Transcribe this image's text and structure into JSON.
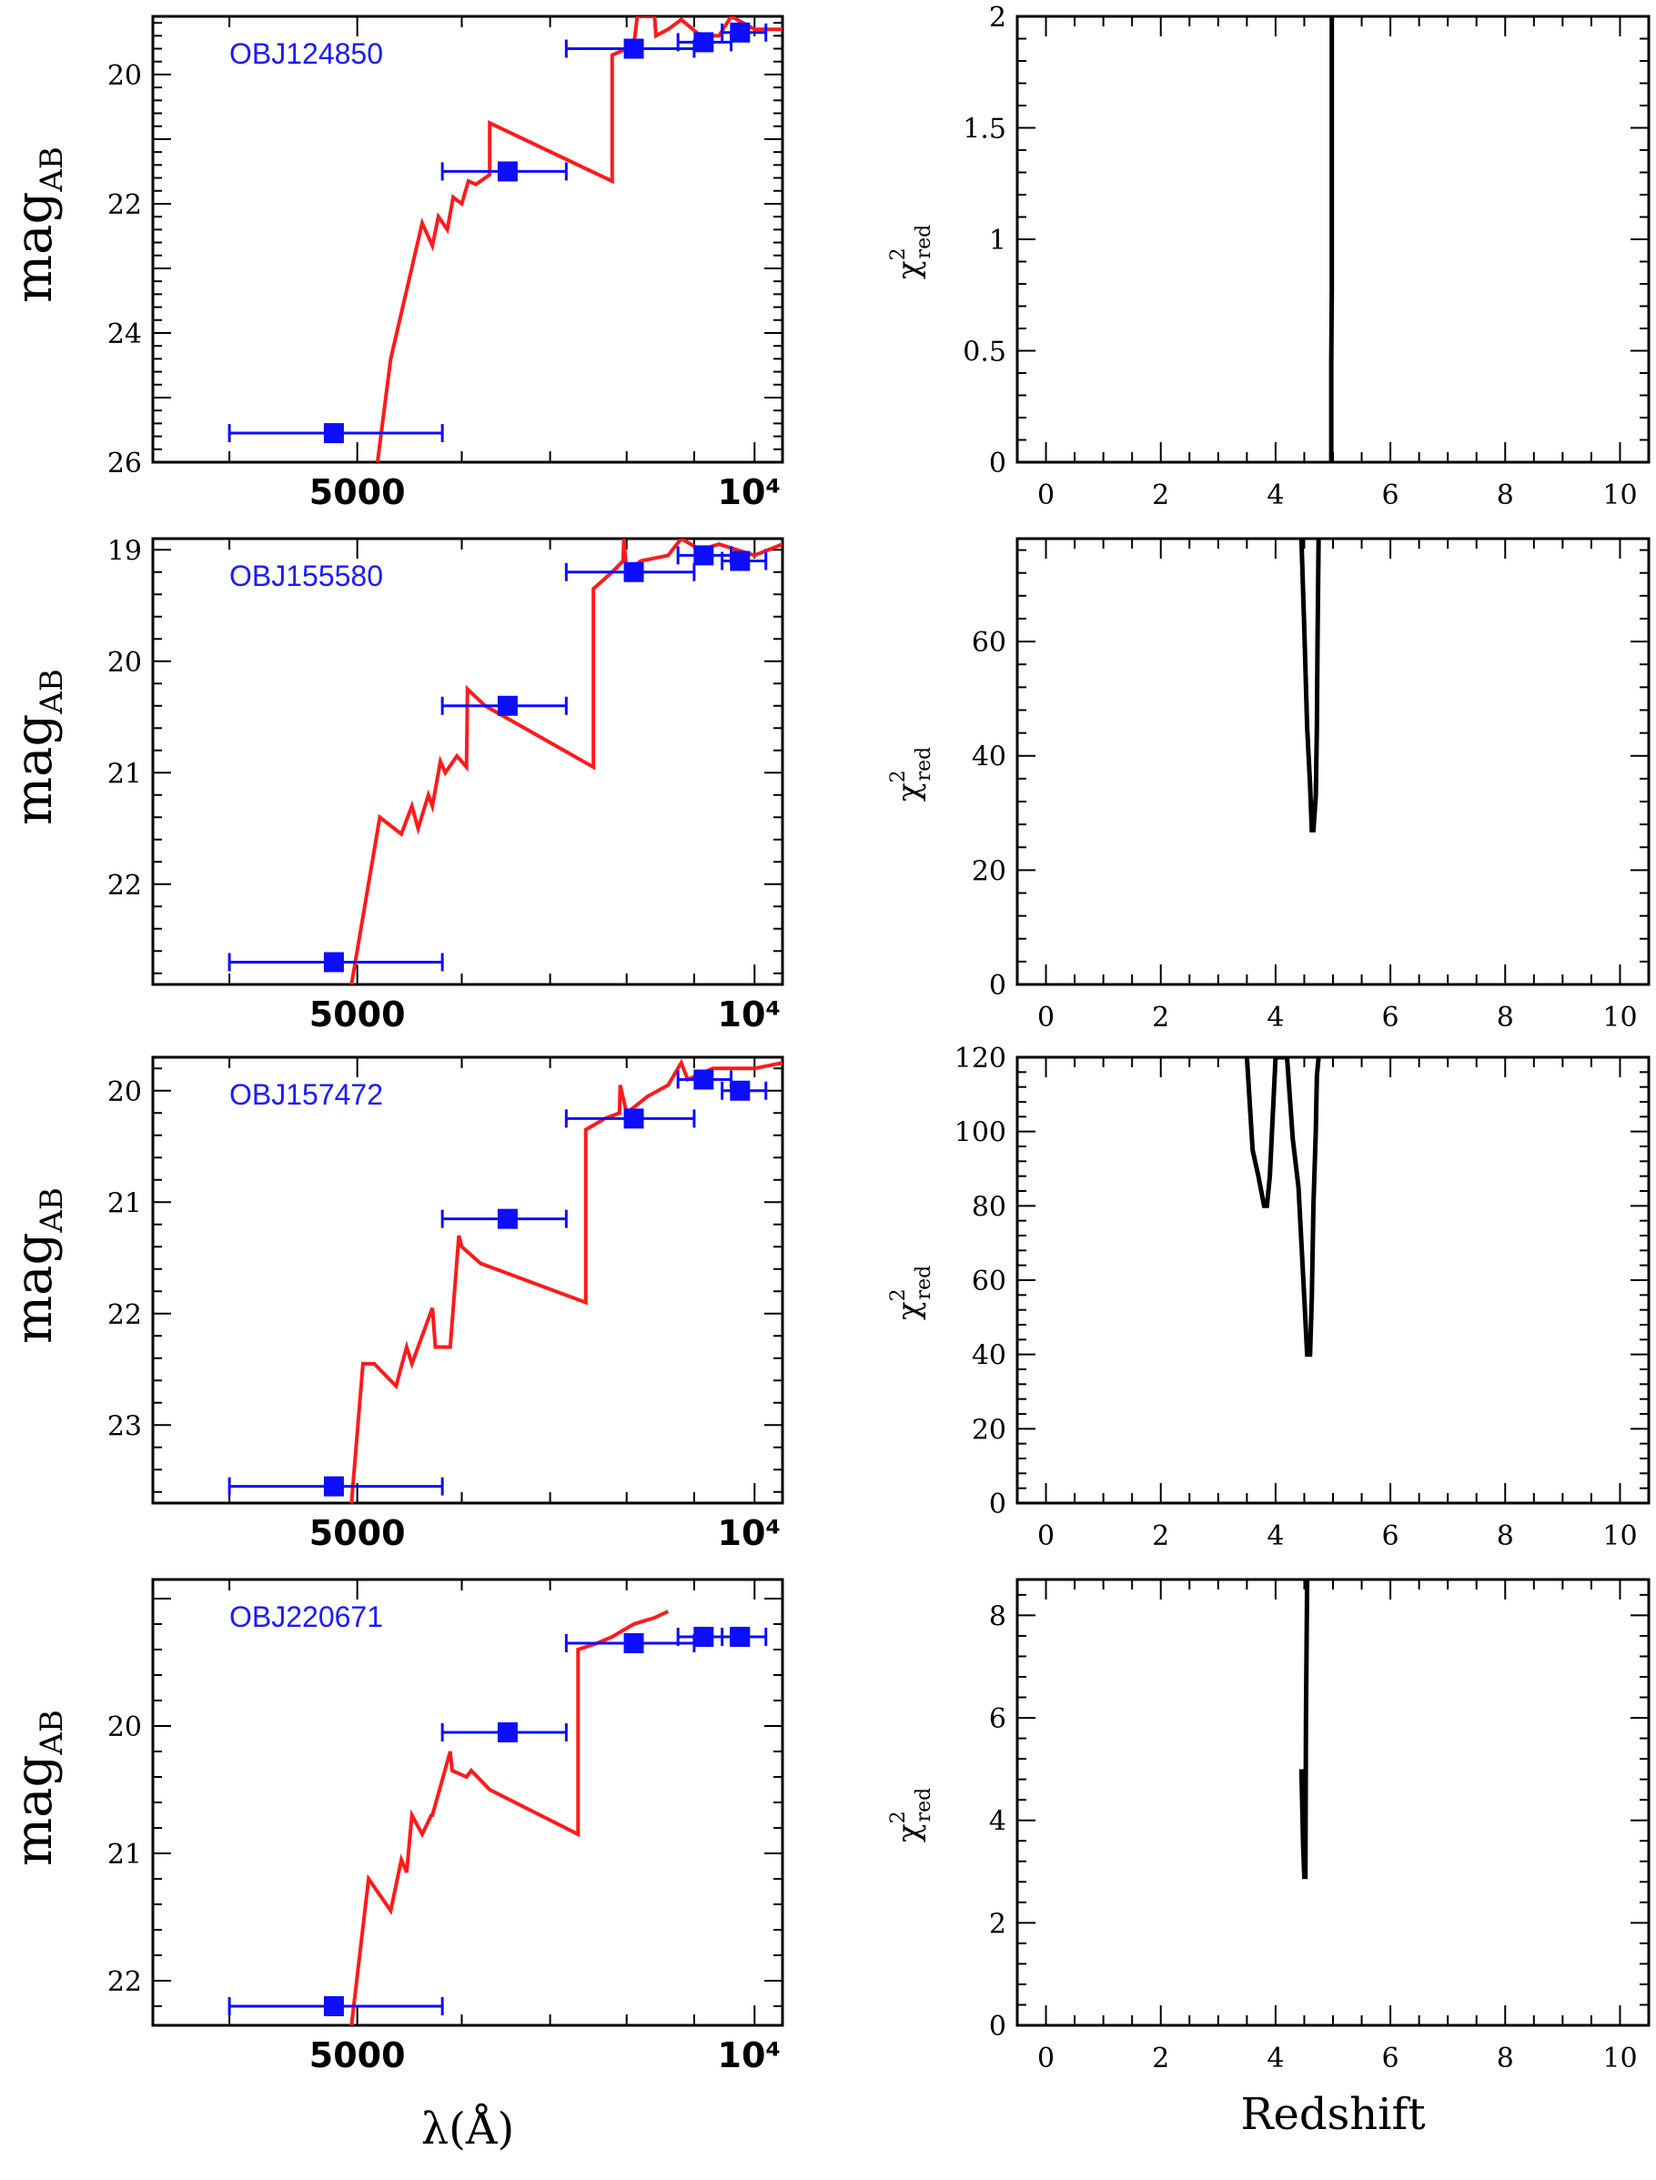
{
  "colors": {
    "model": "#ff1a1a",
    "points": "#0d0dff",
    "axes": "#000000",
    "label": "#1a1aff"
  },
  "labels": {
    "sed_ylabel_main": "mag",
    "sed_ylabel_sub": "AB",
    "sed_xlabel": "λ(Å)",
    "chi_ylabel_main": "χ",
    "chi_ylabel_sup": "2",
    "chi_ylabel_sub": "red",
    "chi_xlabel": "Redshift"
  },
  "chart_data": [
    {
      "type": "line",
      "panel": "sed",
      "object": "OBJ124850",
      "xscale": "log",
      "xlim": [
        3500,
        10500
      ],
      "ylim": [
        26,
        19.1
      ],
      "x_ticklabels": [
        "5000",
        "10⁴"
      ],
      "y_ticks": [
        20,
        22,
        24,
        26
      ],
      "points": [
        {
          "x": 4800,
          "y": 25.55,
          "xerr": [
            4000,
            5800
          ]
        },
        {
          "x": 6500,
          "y": 21.5,
          "xerr": [
            5800,
            7200
          ]
        },
        {
          "x": 8100,
          "y": 19.6,
          "xerr": [
            7200,
            9000
          ]
        },
        {
          "x": 9150,
          "y": 19.5,
          "xerr": [
            8750,
            9600
          ]
        },
        {
          "x": 9750,
          "y": 19.35,
          "xerr": [
            9450,
            10200
          ]
        }
      ],
      "model": {
        "x": [
          5180,
          5300,
          5600,
          5700,
          5760,
          5850,
          5910,
          6000,
          6070,
          6150,
          6300,
          6300,
          7800,
          7800,
          8100,
          8150,
          8400,
          8420,
          8600,
          8800,
          9100,
          9400,
          9600,
          10000,
          10500
        ],
        "y": [
          26,
          24.4,
          22.3,
          22.65,
          22.2,
          22.4,
          21.9,
          22.0,
          21.65,
          21.7,
          21.55,
          20.75,
          21.65,
          19.7,
          19.55,
          19.1,
          19.1,
          19.4,
          19.3,
          19.15,
          19.4,
          19.4,
          19.1,
          19.3,
          19.3
        ]
      }
    },
    {
      "type": "line",
      "panel": "chi2",
      "object": "OBJ124850",
      "xlabel": "",
      "xlim": [
        -0.5,
        10.5
      ],
      "ylim": [
        0,
        2
      ],
      "x_ticks": [
        0,
        2,
        4,
        6,
        8,
        10
      ],
      "y_ticks": [
        "0",
        "0.5",
        "1",
        "1.5",
        "2"
      ],
      "curve": {
        "x": [
          4.97,
          4.97,
          4.98,
          4.98
        ],
        "y": [
          0,
          0.45,
          0.78,
          2.0
        ]
      }
    },
    {
      "type": "line",
      "panel": "sed",
      "object": "OBJ155580",
      "xscale": "log",
      "xlim": [
        3500,
        10500
      ],
      "ylim": [
        22.9,
        18.9
      ],
      "x_ticklabels": [
        "5000",
        "10⁴"
      ],
      "y_ticks": [
        19,
        20,
        21,
        22
      ],
      "points": [
        {
          "x": 4800,
          "y": 22.7,
          "xerr": [
            4000,
            5800
          ]
        },
        {
          "x": 6500,
          "y": 20.4,
          "xerr": [
            5800,
            7200
          ]
        },
        {
          "x": 8100,
          "y": 19.2,
          "xerr": [
            7200,
            9000
          ]
        },
        {
          "x": 9150,
          "y": 19.05,
          "xerr": [
            8750,
            9600
          ]
        },
        {
          "x": 9750,
          "y": 19.1,
          "xerr": [
            9450,
            10200
          ]
        }
      ],
      "model": {
        "x": [
          4950,
          5200,
          5400,
          5500,
          5560,
          5660,
          5700,
          5780,
          5830,
          5950,
          6050,
          6060,
          6250,
          7550,
          7550,
          7800,
          7950,
          7960,
          8000,
          8200,
          8600,
          8800,
          9100,
          9400,
          10000,
          10500
        ],
        "y": [
          22.9,
          21.4,
          21.55,
          21.3,
          21.5,
          21.2,
          21.3,
          20.9,
          21.0,
          20.85,
          20.95,
          20.25,
          20.4,
          20.95,
          19.35,
          19.2,
          19.1,
          18.9,
          19.2,
          19.1,
          19.05,
          18.9,
          19.0,
          18.95,
          19.05,
          18.95
        ]
      }
    },
    {
      "type": "line",
      "panel": "chi2",
      "object": "OBJ155580",
      "xlabel": "",
      "xlim": [
        -0.5,
        10.5
      ],
      "ylim": [
        0,
        78
      ],
      "x_ticks": [
        0,
        2,
        4,
        6,
        8,
        10
      ],
      "y_ticks": [
        "0",
        "20",
        "40",
        "60"
      ],
      "curve": {
        "x": [
          4.45,
          4.5,
          4.55,
          4.6,
          4.63,
          4.66,
          4.7,
          4.72,
          4.73,
          4.75
        ],
        "y": [
          78,
          62,
          45,
          35,
          27,
          27,
          33,
          45,
          60,
          78
        ]
      }
    },
    {
      "type": "line",
      "panel": "sed",
      "object": "OBJ157472",
      "xscale": "log",
      "xlim": [
        3500,
        10500
      ],
      "ylim": [
        23.7,
        19.7
      ],
      "x_ticklabels": [
        "5000",
        "10⁴"
      ],
      "y_ticks": [
        20,
        21,
        22,
        23
      ],
      "points": [
        {
          "x": 4800,
          "y": 23.55,
          "xerr": [
            4000,
            5800
          ]
        },
        {
          "x": 6500,
          "y": 21.15,
          "xerr": [
            5800,
            7200
          ]
        },
        {
          "x": 8100,
          "y": 20.25,
          "xerr": [
            7200,
            9000
          ]
        },
        {
          "x": 9150,
          "y": 19.9,
          "xerr": [
            8750,
            9600
          ]
        },
        {
          "x": 9750,
          "y": 20.0,
          "xerr": [
            9450,
            10200
          ]
        }
      ],
      "model": {
        "x": [
          4950,
          5050,
          5150,
          5350,
          5450,
          5500,
          5700,
          5730,
          5880,
          5970,
          6000,
          6200,
          7450,
          7450,
          7700,
          7900,
          7910,
          8000,
          8300,
          8600,
          8800,
          8900,
          9300,
          10000,
          10500
        ],
        "y": [
          23.7,
          22.45,
          22.45,
          22.65,
          22.3,
          22.45,
          21.95,
          22.3,
          22.3,
          21.3,
          21.4,
          21.55,
          21.9,
          20.35,
          20.25,
          20.2,
          19.95,
          20.2,
          20.05,
          19.95,
          19.75,
          19.9,
          19.8,
          19.8,
          19.75
        ]
      }
    },
    {
      "type": "line",
      "panel": "chi2",
      "object": "OBJ157472",
      "xlabel": "",
      "xlim": [
        -0.5,
        10.5
      ],
      "ylim": [
        0,
        120
      ],
      "x_ticks": [
        0,
        2,
        4,
        6,
        8,
        10
      ],
      "y_ticks": [
        "0",
        "20",
        "40",
        "60",
        "80",
        "100",
        "120"
      ],
      "curve": {
        "x": [
          3.5,
          3.6,
          3.7,
          3.8,
          3.85,
          3.9,
          4.0,
          4.1,
          4.2,
          4.3,
          4.4,
          4.5,
          4.55,
          4.6,
          4.63,
          4.66,
          4.7,
          4.72,
          4.75
        ],
        "y": [
          120,
          95,
          88,
          80,
          80,
          88,
          120,
          120,
          120,
          98,
          85,
          55,
          40,
          40,
          55,
          80,
          100,
          115,
          120
        ]
      }
    },
    {
      "type": "line",
      "panel": "sed",
      "object": "OBJ220671",
      "xscale": "log",
      "xlim": [
        3500,
        10500
      ],
      "ylim": [
        22.35,
        18.85
      ],
      "x_ticklabels": [
        "5000",
        "10⁴"
      ],
      "y_ticks": [
        20,
        21,
        22
      ],
      "points": [
        {
          "x": 4800,
          "y": 22.2,
          "xerr": [
            4000,
            5800
          ]
        },
        {
          "x": 6500,
          "y": 20.05,
          "xerr": [
            5800,
            7200
          ]
        },
        {
          "x": 8100,
          "y": 19.35,
          "xerr": [
            7200,
            9000
          ]
        },
        {
          "x": 9150,
          "y": 19.3,
          "xerr": [
            8750,
            9600
          ]
        },
        {
          "x": 9750,
          "y": 19.3,
          "xerr": [
            9450,
            10200
          ]
        }
      ],
      "model": {
        "x": [
          4950,
          5100,
          5300,
          5400,
          5450,
          5500,
          5600,
          5690,
          5700,
          5880,
          5900,
          6050,
          6100,
          6300,
          7350,
          7350,
          7600,
          7800,
          8100,
          8400,
          8600
        ],
        "y": [
          22.35,
          21.2,
          21.45,
          21.05,
          21.15,
          20.7,
          20.85,
          20.7,
          20.7,
          20.2,
          20.35,
          20.4,
          20.35,
          20.5,
          20.85,
          19.4,
          19.35,
          19.3,
          19.2,
          19.15,
          19.1
        ]
      }
    },
    {
      "type": "line",
      "panel": "chi2",
      "object": "OBJ220671",
      "xlabel": "Redshift",
      "xlim": [
        -0.5,
        10.5
      ],
      "ylim": [
        0,
        8.7
      ],
      "x_ticks": [
        0,
        2,
        4,
        6,
        8,
        10
      ],
      "y_ticks": [
        "0",
        "2",
        "4",
        "6",
        "8"
      ],
      "curve": {
        "x": [
          4.45,
          4.48,
          4.5,
          4.52,
          4.53,
          4.55,
          4.56
        ],
        "y": [
          5.0,
          3.5,
          2.9,
          2.9,
          6.0,
          8.7,
          8.7
        ]
      }
    }
  ]
}
